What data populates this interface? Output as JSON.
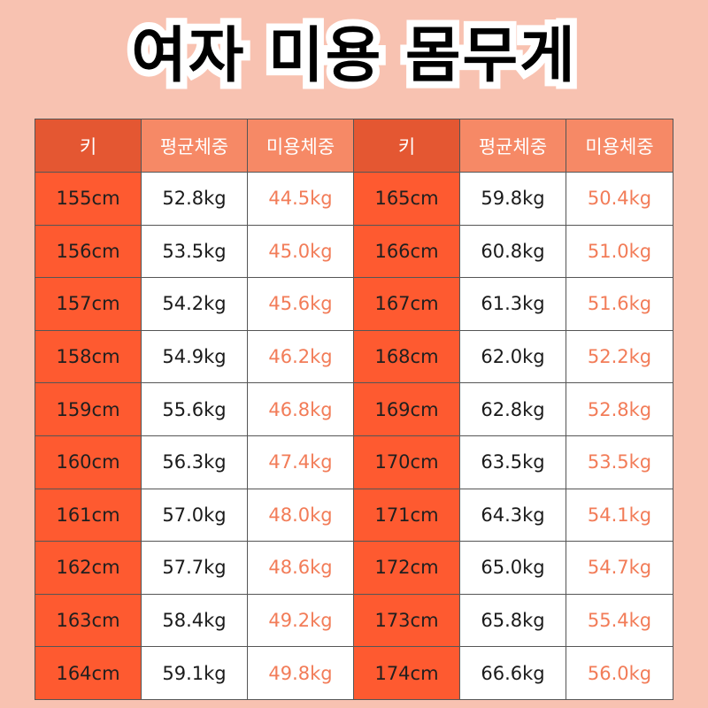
{
  "title": "여자 미용 몸무게",
  "headers": [
    "키",
    "평균체중",
    "미용체중",
    "키",
    "평균체중",
    "미용체중"
  ],
  "colors": {
    "background": "#f8c2b1",
    "header_dark": "#e45732",
    "header_light": "#f68966",
    "height_cell": "#fe5a30",
    "beauty_text": "#f27c58"
  },
  "rows": [
    {
      "left": {
        "height": "155cm",
        "avg": "52.8kg",
        "beauty": "44.5kg"
      },
      "right": {
        "height": "165cm",
        "avg": "59.8kg",
        "beauty": "50.4kg"
      }
    },
    {
      "left": {
        "height": "156cm",
        "avg": "53.5kg",
        "beauty": "45.0kg"
      },
      "right": {
        "height": "166cm",
        "avg": "60.8kg",
        "beauty": "51.0kg"
      }
    },
    {
      "left": {
        "height": "157cm",
        "avg": "54.2kg",
        "beauty": "45.6kg"
      },
      "right": {
        "height": "167cm",
        "avg": "61.3kg",
        "beauty": "51.6kg"
      }
    },
    {
      "left": {
        "height": "158cm",
        "avg": "54.9kg",
        "beauty": "46.2kg"
      },
      "right": {
        "height": "168cm",
        "avg": "62.0kg",
        "beauty": "52.2kg"
      }
    },
    {
      "left": {
        "height": "159cm",
        "avg": "55.6kg",
        "beauty": "46.8kg"
      },
      "right": {
        "height": "169cm",
        "avg": "62.8kg",
        "beauty": "52.8kg"
      }
    },
    {
      "left": {
        "height": "160cm",
        "avg": "56.3kg",
        "beauty": "47.4kg"
      },
      "right": {
        "height": "170cm",
        "avg": "63.5kg",
        "beauty": "53.5kg"
      }
    },
    {
      "left": {
        "height": "161cm",
        "avg": "57.0kg",
        "beauty": "48.0kg"
      },
      "right": {
        "height": "171cm",
        "avg": "64.3kg",
        "beauty": "54.1kg"
      }
    },
    {
      "left": {
        "height": "162cm",
        "avg": "57.7kg",
        "beauty": "48.6kg"
      },
      "right": {
        "height": "172cm",
        "avg": "65.0kg",
        "beauty": "54.7kg"
      }
    },
    {
      "left": {
        "height": "163cm",
        "avg": "58.4kg",
        "beauty": "49.2kg"
      },
      "right": {
        "height": "173cm",
        "avg": "65.8kg",
        "beauty": "55.4kg"
      }
    },
    {
      "left": {
        "height": "164cm",
        "avg": "59.1kg",
        "beauty": "49.8kg"
      },
      "right": {
        "height": "174cm",
        "avg": "66.6kg",
        "beauty": "56.0kg"
      }
    }
  ]
}
